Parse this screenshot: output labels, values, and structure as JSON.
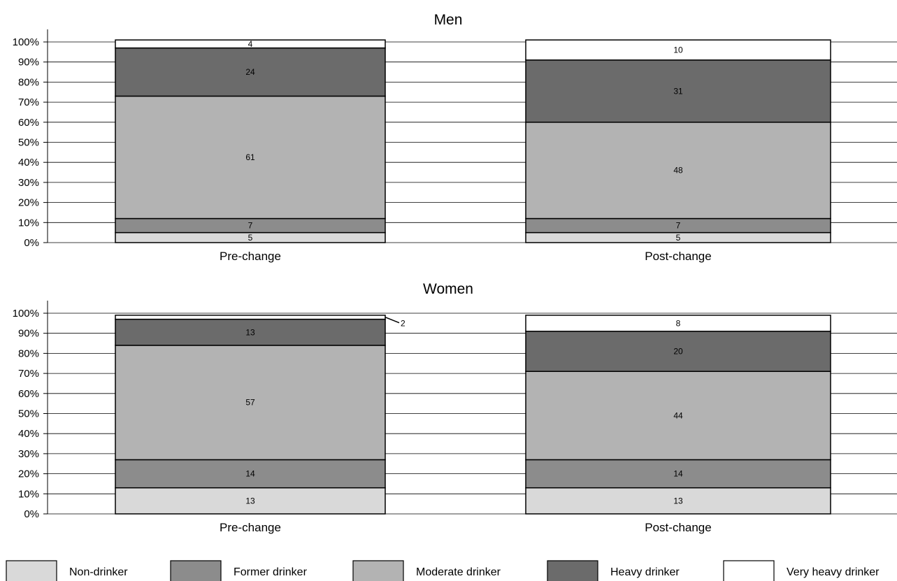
{
  "chart_data": [
    {
      "type": "bar",
      "stacked": true,
      "title": "Men",
      "categories": [
        "Pre-change",
        "Post-change"
      ],
      "ylim": [
        0,
        100
      ],
      "yticks": [
        "0%",
        "10%",
        "20%",
        "30%",
        "40%",
        "50%",
        "60%",
        "70%",
        "80%",
        "90%",
        "100%"
      ],
      "grid": true,
      "series": [
        {
          "name": "Non-drinker",
          "values": [
            5,
            5
          ],
          "labels": [
            "5",
            "5"
          ]
        },
        {
          "name": "Former drinker",
          "values": [
            7,
            7
          ],
          "labels": [
            "7",
            "7"
          ]
        },
        {
          "name": "Moderate drinker",
          "values": [
            61,
            48
          ],
          "labels": [
            "61",
            "48"
          ]
        },
        {
          "name": "Heavy drinker",
          "values": [
            24,
            31
          ],
          "labels": [
            "24",
            "31"
          ]
        },
        {
          "name": "Very heavy drinker",
          "values": [
            4,
            10
          ],
          "labels": [
            "4",
            "10"
          ]
        }
      ]
    },
    {
      "type": "bar",
      "stacked": true,
      "title": "Women",
      "categories": [
        "Pre-change",
        "Post-change"
      ],
      "ylim": [
        0,
        100
      ],
      "yticks": [
        "0%",
        "10%",
        "20%",
        "30%",
        "40%",
        "50%",
        "60%",
        "70%",
        "80%",
        "90%",
        "100%"
      ],
      "grid": true,
      "series": [
        {
          "name": "Non-drinker",
          "values": [
            13,
            13
          ],
          "labels": [
            "13",
            "13"
          ]
        },
        {
          "name": "Former drinker",
          "values": [
            14,
            14
          ],
          "labels": [
            "14",
            "14"
          ]
        },
        {
          "name": "Moderate drinker",
          "values": [
            57,
            44
          ],
          "labels": [
            "57",
            "44"
          ]
        },
        {
          "name": "Heavy drinker",
          "values": [
            13,
            20
          ],
          "labels": [
            "13",
            "20"
          ]
        },
        {
          "name": "Very heavy drinker",
          "values": [
            2,
            8
          ],
          "labels": [
            "2",
            "8"
          ]
        }
      ]
    }
  ],
  "legend": {
    "placement": "bottom",
    "items": [
      {
        "label": "Non-drinker",
        "color": "#d9d9d9"
      },
      {
        "label": "Former drinker",
        "color": "#8c8c8c"
      },
      {
        "label": "Moderate drinker",
        "color": "#b3b3b3"
      },
      {
        "label": "Heavy drinker",
        "color": "#6b6b6b"
      },
      {
        "label": "Very heavy drinker",
        "color": "#ffffff"
      }
    ]
  },
  "series_colors": [
    "#d9d9d9",
    "#8c8c8c",
    "#b3b3b3",
    "#6b6b6b",
    "#ffffff"
  ]
}
